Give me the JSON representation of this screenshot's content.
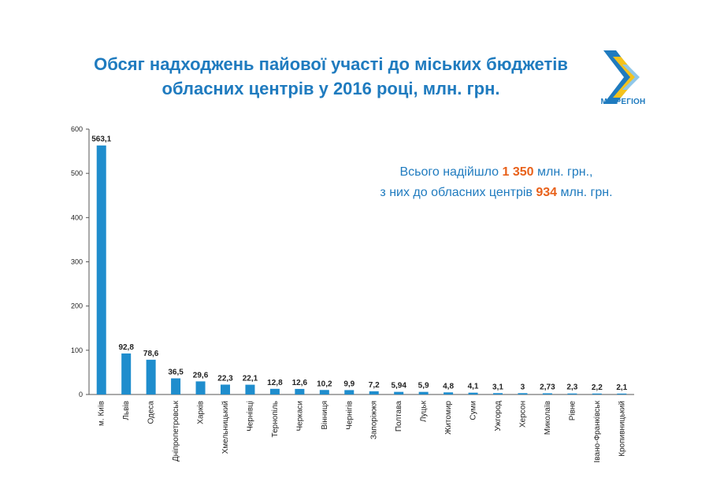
{
  "title_line1": "Обсяг надходжень пайової участі до міських бюджетів",
  "title_line2": "обласних центрів у 2016 році, млн. грн.",
  "logo": {
    "text": "МІНРЕГІОН",
    "colors": [
      "#1f7bbf",
      "#f4c21b"
    ]
  },
  "summary": {
    "line1_pre": "Всього надійшло ",
    "line1_value": "1 350",
    "line1_post": " млн. грн.,",
    "line2_pre": "з них до обласних центрів ",
    "line2_value": "934",
    "line2_post": " млн. грн.",
    "highlight_color": "#e8611a",
    "text_color": "#1f7bbf"
  },
  "chart_data": {
    "type": "bar",
    "categories": [
      "м. Київ",
      "Львів",
      "Одеса",
      "Дніпропетровськ",
      "Харків",
      "Хмельницький",
      "Чернівці",
      "Тернопіль",
      "Черкаси",
      "Вінниця",
      "Чернігів",
      "Запоріжжя",
      "Полтава",
      "Луцьк",
      "Житомир",
      "Суми",
      "Ужгород",
      "Херсон",
      "Миколаїв",
      "Рівне",
      "Івано-Франківськ",
      "Кропивницький"
    ],
    "values": [
      563.1,
      92.8,
      78.6,
      36.5,
      29.6,
      22.3,
      22.1,
      12.8,
      12.6,
      10.2,
      9.9,
      7.2,
      5.94,
      5.9,
      4.8,
      4.1,
      3.1,
      3,
      2.73,
      2.3,
      2.2,
      2.1
    ],
    "value_labels": [
      "563,1",
      "92,8",
      "78,6",
      "36,5",
      "29,6",
      "22,3",
      "22,1",
      "12,8",
      "12,6",
      "10,2",
      "9,9",
      "7,2",
      "5,94",
      "5,9",
      "4,8",
      "4,1",
      "3,1",
      "3",
      "2,73",
      "2,3",
      "2,2",
      "2,1"
    ],
    "ylim": [
      0,
      600
    ],
    "yticks": [
      0,
      100,
      200,
      300,
      400,
      500,
      600
    ],
    "bar_color": "#1f8dcd",
    "grid": false,
    "legend": "none"
  }
}
